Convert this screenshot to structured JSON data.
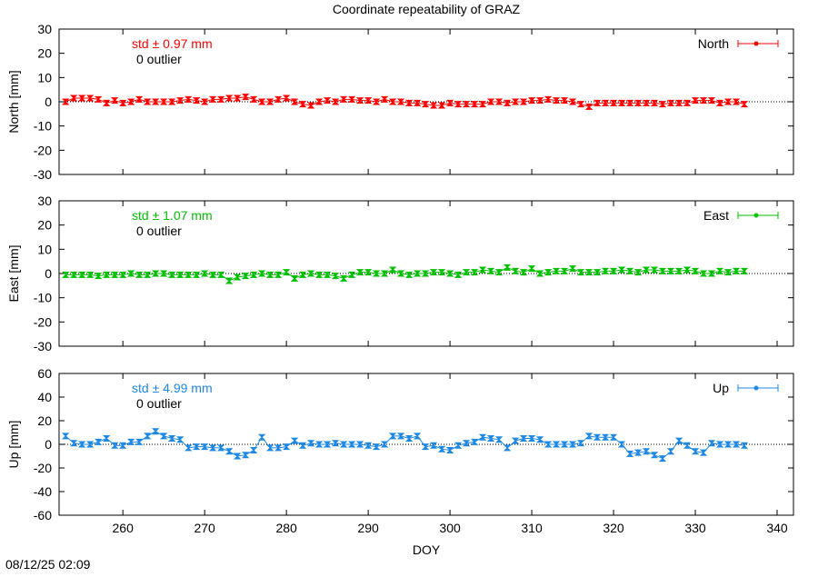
{
  "title": "Coordinate repeatability of GRAZ",
  "timestamp": "08/12/25 02:09",
  "chart_data": [
    {
      "type": "line",
      "ylabel": "North [mm]",
      "ylim": [
        -30,
        30
      ],
      "yticks": [
        -30,
        -20,
        -10,
        0,
        10,
        20,
        30
      ],
      "xlim": [
        252.2,
        342
      ],
      "xticks": [
        260,
        270,
        280,
        290,
        300,
        310,
        320,
        330,
        340
      ],
      "annotations": [
        "std ± 0.97 mm",
        "0 outlier"
      ],
      "x": [
        253,
        254,
        255,
        256,
        257,
        258,
        259,
        260,
        261,
        262,
        263,
        264,
        265,
        266,
        267,
        268,
        269,
        270,
        271,
        272,
        273,
        274,
        275,
        276,
        277,
        278,
        279,
        280,
        281,
        282,
        283,
        284,
        285,
        286,
        287,
        288,
        289,
        290,
        291,
        292,
        293,
        294,
        295,
        296,
        297,
        298,
        299,
        300,
        301,
        302,
        303,
        304,
        305,
        306,
        307,
        308,
        309,
        310,
        311,
        312,
        313,
        314,
        315,
        316,
        317,
        318,
        319,
        320,
        321,
        322,
        323,
        324,
        325,
        326,
        327,
        328,
        329,
        330,
        331,
        332,
        333,
        334,
        335,
        336
      ],
      "series": [
        {
          "name": "North",
          "color": "#ff0000",
          "values": [
            0,
            1.5,
            1.5,
            1.5,
            1,
            -0.5,
            0.5,
            -0.5,
            0,
            1,
            0,
            0,
            0,
            0,
            0.5,
            1,
            0.5,
            0,
            1,
            1,
            1.5,
            1.5,
            2,
            1,
            0,
            0,
            1,
            1.5,
            0,
            -1,
            -1.5,
            0,
            0.5,
            0,
            1,
            1,
            0.5,
            0.5,
            0,
            1,
            0,
            0,
            -0.5,
            -0.5,
            -1,
            -1.5,
            -1.5,
            -0.5,
            -1,
            -1,
            -1,
            -1,
            0,
            0,
            -0.5,
            0,
            0,
            0.5,
            0.5,
            1,
            0.5,
            0.5,
            0,
            -1,
            -2,
            -0.5,
            -0.5,
            -0.5,
            -0.5,
            -0.5,
            -0.5,
            -0.5,
            -0.5,
            -1,
            -0.5,
            -0.5,
            -0.5,
            0.5,
            0.5,
            0.5,
            -0.5,
            0,
            0,
            -1
          ]
        }
      ]
    },
    {
      "type": "line",
      "ylabel": "East [mm]",
      "ylim": [
        -30,
        30
      ],
      "yticks": [
        -30,
        -20,
        -10,
        0,
        10,
        20,
        30
      ],
      "xlim": [
        252.2,
        342
      ],
      "xticks": [
        260,
        270,
        280,
        290,
        300,
        310,
        320,
        330,
        340
      ],
      "annotations": [
        "std ± 1.07 mm",
        "0 outlier"
      ],
      "x": [
        253,
        254,
        255,
        256,
        257,
        258,
        259,
        260,
        261,
        262,
        263,
        264,
        265,
        266,
        267,
        268,
        269,
        270,
        271,
        272,
        273,
        274,
        275,
        276,
        277,
        278,
        279,
        280,
        281,
        282,
        283,
        284,
        285,
        286,
        287,
        288,
        289,
        290,
        291,
        292,
        293,
        294,
        295,
        296,
        297,
        298,
        299,
        300,
        301,
        302,
        303,
        304,
        305,
        306,
        307,
        308,
        309,
        310,
        311,
        312,
        313,
        314,
        315,
        316,
        317,
        318,
        319,
        320,
        321,
        322,
        323,
        324,
        325,
        326,
        327,
        328,
        329,
        330,
        331,
        332,
        333,
        334,
        335,
        336
      ],
      "series": [
        {
          "name": "East",
          "color": "#00c000",
          "values": [
            -0.5,
            -0.5,
            -0.5,
            -0.5,
            -1,
            -0.5,
            -0.5,
            -0.5,
            0,
            -0.5,
            -0.5,
            0,
            0,
            -0.5,
            -0.5,
            -0.5,
            -0.5,
            0,
            -0.5,
            -0.5,
            -3,
            -1.5,
            -1,
            -0.5,
            0,
            -0.5,
            -0.5,
            0.5,
            -2,
            -0.5,
            0,
            -0.5,
            -0.5,
            -1,
            -2,
            -0.5,
            0.5,
            0.5,
            0,
            0,
            1.5,
            0,
            -0.5,
            0,
            0,
            0.5,
            0.5,
            0,
            -0.5,
            0.5,
            0.5,
            1.5,
            1,
            0.5,
            2.5,
            1,
            0.5,
            2,
            0,
            0.5,
            1,
            1,
            2,
            0.5,
            0.5,
            0.5,
            1,
            1,
            1.5,
            1,
            0.5,
            1.5,
            1.5,
            1,
            1,
            1,
            1.5,
            1,
            0,
            0,
            1,
            0.5,
            1,
            1
          ]
        }
      ]
    },
    {
      "type": "line",
      "ylabel": "Up [mm]",
      "xlabel": "DOY",
      "ylim": [
        -60,
        60
      ],
      "yticks": [
        -60,
        -40,
        -20,
        0,
        20,
        40,
        60
      ],
      "xlim": [
        252.2,
        342
      ],
      "xticks": [
        260,
        270,
        280,
        290,
        300,
        310,
        320,
        330,
        340
      ],
      "annotations": [
        "std ± 4.99 mm",
        "0 outlier"
      ],
      "x": [
        253,
        254,
        255,
        256,
        257,
        258,
        259,
        260,
        261,
        262,
        263,
        264,
        265,
        266,
        267,
        268,
        269,
        270,
        271,
        272,
        273,
        274,
        275,
        276,
        277,
        278,
        279,
        280,
        281,
        282,
        283,
        284,
        285,
        286,
        287,
        288,
        289,
        290,
        291,
        292,
        293,
        294,
        295,
        296,
        297,
        298,
        299,
        300,
        301,
        302,
        303,
        304,
        305,
        306,
        307,
        308,
        309,
        310,
        311,
        312,
        313,
        314,
        315,
        316,
        317,
        318,
        319,
        320,
        321,
        322,
        323,
        324,
        325,
        326,
        327,
        328,
        329,
        330,
        331,
        332,
        333,
        334,
        335,
        336
      ],
      "series": [
        {
          "name": "Up",
          "color": "#1e88e5",
          "values": [
            7,
            1,
            0,
            0,
            2,
            5,
            -1,
            -1,
            2,
            2,
            7,
            11,
            7,
            5,
            4,
            -3,
            -2,
            -2,
            -3,
            -3,
            -6,
            -10,
            -9,
            -5,
            6,
            -3,
            -3,
            -2,
            3,
            -1,
            1,
            0,
            0,
            1,
            0,
            0,
            0,
            -1,
            -2,
            0,
            7,
            7,
            5,
            7,
            -2,
            -1,
            -4,
            -5,
            -1,
            1,
            2,
            6,
            5,
            4,
            -3,
            3,
            5,
            5,
            4,
            0,
            0,
            0,
            0,
            1,
            7,
            6,
            6,
            6,
            0,
            -8,
            -7,
            -6,
            -9,
            -12,
            -6,
            3,
            -1,
            -6,
            -7,
            1,
            0,
            0,
            0,
            -1
          ]
        }
      ]
    }
  ]
}
